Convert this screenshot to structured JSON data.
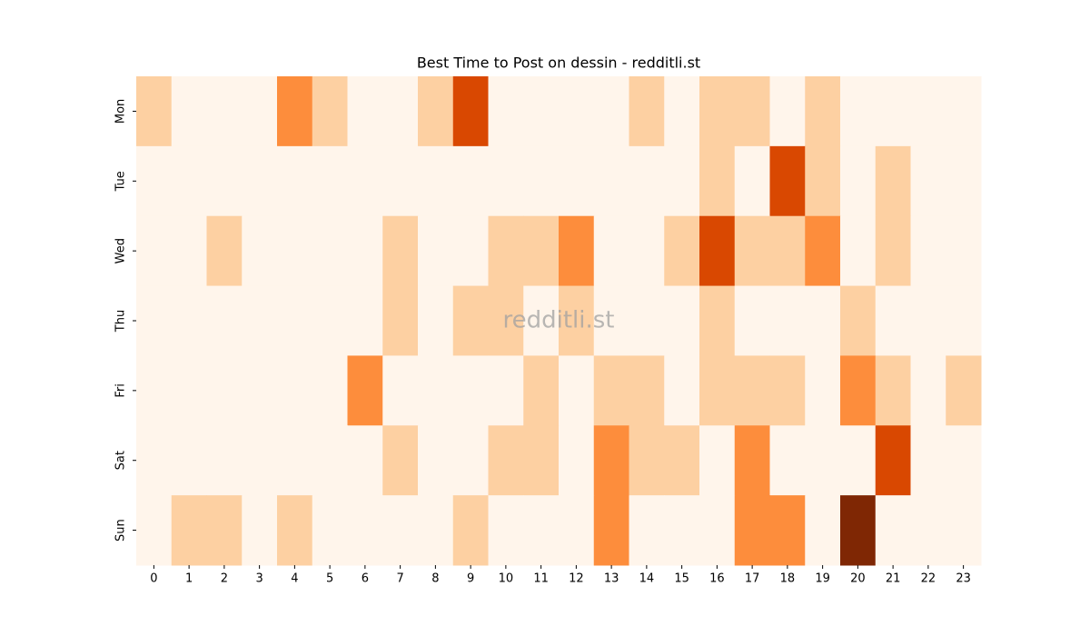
{
  "chart_data": {
    "type": "heatmap",
    "title": "Best Time to Post on dessin - redditli.st",
    "watermark": "redditli.st",
    "categories": [
      "0",
      "1",
      "2",
      "3",
      "4",
      "5",
      "6",
      "7",
      "8",
      "9",
      "10",
      "11",
      "12",
      "13",
      "14",
      "15",
      "16",
      "17",
      "18",
      "19",
      "20",
      "21",
      "22",
      "23"
    ],
    "rows": [
      "Mon",
      "Tue",
      "Wed",
      "Thu",
      "Fri",
      "Sat",
      "Sun"
    ],
    "values": [
      [
        1,
        0,
        0,
        0,
        2,
        1,
        0,
        0,
        1,
        3,
        0,
        0,
        0,
        0,
        1,
        0,
        1,
        1,
        0,
        1,
        0,
        0,
        0,
        0
      ],
      [
        0,
        0,
        0,
        0,
        0,
        0,
        0,
        0,
        0,
        0,
        0,
        0,
        0,
        0,
        0,
        0,
        1,
        0,
        3,
        1,
        0,
        1,
        0,
        0
      ],
      [
        0,
        0,
        1,
        0,
        0,
        0,
        0,
        1,
        0,
        0,
        1,
        1,
        2,
        0,
        0,
        1,
        3,
        1,
        1,
        2,
        0,
        1,
        0,
        0
      ],
      [
        0,
        0,
        0,
        0,
        0,
        0,
        0,
        1,
        0,
        1,
        1,
        0,
        1,
        0,
        0,
        0,
        1,
        0,
        0,
        0,
        1,
        0,
        0,
        0
      ],
      [
        0,
        0,
        0,
        0,
        0,
        0,
        2,
        0,
        0,
        0,
        0,
        1,
        0,
        1,
        1,
        0,
        1,
        1,
        1,
        0,
        2,
        1,
        0,
        1
      ],
      [
        0,
        0,
        0,
        0,
        0,
        0,
        0,
        1,
        0,
        0,
        1,
        1,
        0,
        2,
        1,
        1,
        0,
        2,
        0,
        0,
        0,
        3,
        0,
        0
      ],
      [
        0,
        1,
        1,
        0,
        1,
        0,
        0,
        0,
        0,
        1,
        0,
        0,
        0,
        2,
        0,
        0,
        0,
        2,
        2,
        0,
        4,
        0,
        0,
        0
      ]
    ],
    "zlim": [
      0,
      4
    ],
    "colorscale": [
      "#fff5eb",
      "#fdd0a2",
      "#fd8d3c",
      "#d94801",
      "#7f2704"
    ]
  }
}
